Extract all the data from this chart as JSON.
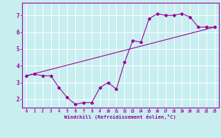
{
  "title": "",
  "xlabel": "Windchill (Refroidissement éolien,°C)",
  "ylabel": "",
  "bg_color": "#c8eef0",
  "line_color": "#990099",
  "xlim": [
    -0.5,
    23.5
  ],
  "ylim": [
    1.5,
    7.75
  ],
  "xticks": [
    0,
    1,
    2,
    3,
    4,
    5,
    6,
    7,
    8,
    9,
    10,
    11,
    12,
    13,
    14,
    15,
    16,
    17,
    18,
    19,
    20,
    21,
    22,
    23
  ],
  "yticks": [
    2,
    3,
    4,
    5,
    6,
    7
  ],
  "line1_x": [
    0,
    1,
    2,
    3,
    4,
    5,
    6,
    7,
    8,
    9,
    10,
    11,
    12,
    13,
    14,
    15,
    16,
    17,
    18,
    19,
    20,
    21,
    22,
    23
  ],
  "line1_y": [
    3.4,
    3.5,
    3.4,
    3.4,
    2.7,
    2.1,
    1.7,
    1.8,
    1.8,
    2.7,
    3.0,
    2.6,
    4.2,
    5.5,
    5.4,
    6.8,
    7.1,
    7.0,
    7.0,
    7.1,
    6.9,
    6.3,
    6.3,
    6.3
  ],
  "line2_x": [
    0,
    23
  ],
  "line2_y": [
    3.4,
    6.3
  ]
}
